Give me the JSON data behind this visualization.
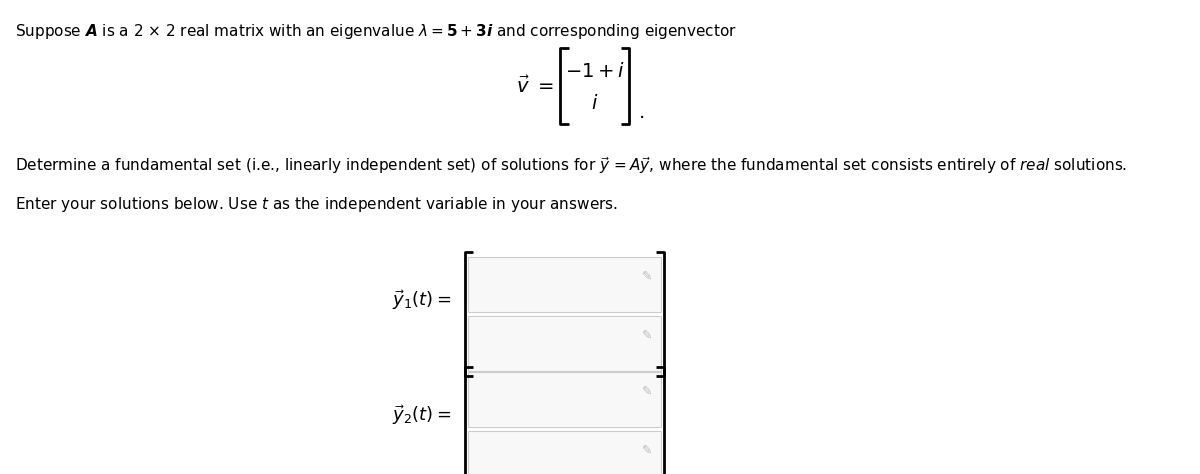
{
  "bg_color": "#ffffff",
  "text_color": "#000000",
  "orange_color": "#c8580a",
  "bracket_color": "#000000",
  "box_fill": "#f8f8f8",
  "box_edge": "#cccccc",
  "pencil_color": "#bbbbbb",
  "figsize": [
    12.0,
    4.74
  ],
  "dpi": 100
}
